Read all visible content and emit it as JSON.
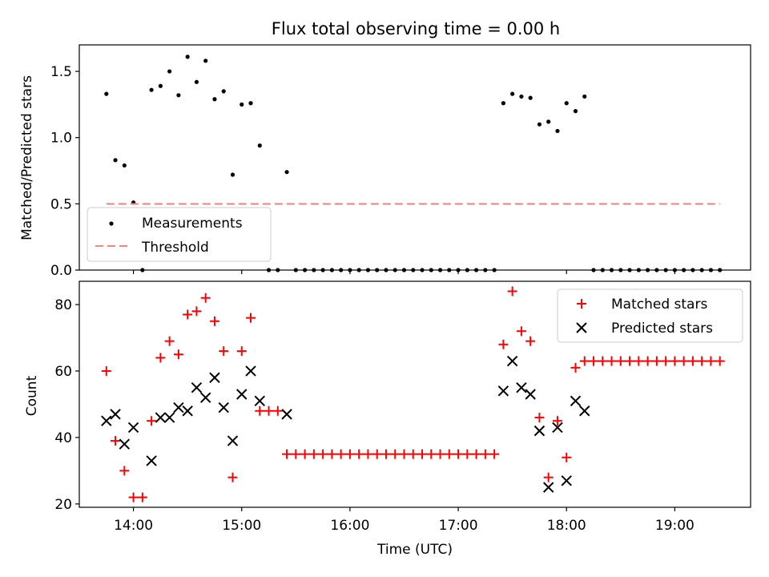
{
  "figure": {
    "title": "Flux total observing time = 0.00 h",
    "xlabel": "Time (UTC)",
    "x_ticks": [
      "14:00",
      "15:00",
      "16:00",
      "17:00",
      "18:00",
      "19:00"
    ]
  },
  "chart_data": [
    {
      "type": "scatter",
      "ylabel": "Matched/Predicted stars",
      "xlim": [
        "13:30",
        "19:42"
      ],
      "ylim": [
        0,
        1.7
      ],
      "y_ticks": [
        "0.0",
        "0.5",
        "1.0",
        "1.5"
      ],
      "legend": {
        "position": "lower-left",
        "entries": [
          "Measurements",
          "Threshold"
        ]
      },
      "series": [
        {
          "name": "Measurements",
          "marker": "dot",
          "color": "#000000",
          "points": [
            [
              "13:45",
              1.33
            ],
            [
              "13:50",
              0.83
            ],
            [
              "13:55",
              0.79
            ],
            [
              "14:00",
              0.51
            ],
            [
              "14:05",
              0.0
            ],
            [
              "14:10",
              1.36
            ],
            [
              "14:15",
              1.39
            ],
            [
              "14:20",
              1.5
            ],
            [
              "14:25",
              1.32
            ],
            [
              "14:30",
              1.61
            ],
            [
              "14:35",
              1.42
            ],
            [
              "14:40",
              1.58
            ],
            [
              "14:45",
              1.29
            ],
            [
              "14:50",
              1.35
            ],
            [
              "14:55",
              0.72
            ],
            [
              "15:00",
              1.25
            ],
            [
              "15:05",
              1.26
            ],
            [
              "15:10",
              0.94
            ],
            [
              "15:15",
              0.0
            ],
            [
              "15:20",
              0.0
            ],
            [
              "15:25",
              0.74
            ],
            [
              "15:30",
              0.0
            ],
            [
              "15:35",
              0.0
            ],
            [
              "15:40",
              0.0
            ],
            [
              "15:45",
              0.0
            ],
            [
              "15:50",
              0.0
            ],
            [
              "15:55",
              0.0
            ],
            [
              "16:00",
              0.0
            ],
            [
              "16:05",
              0.0
            ],
            [
              "16:10",
              0.0
            ],
            [
              "16:15",
              0.0
            ],
            [
              "16:20",
              0.0
            ],
            [
              "16:25",
              0.0
            ],
            [
              "16:30",
              0.0
            ],
            [
              "16:35",
              0.0
            ],
            [
              "16:40",
              0.0
            ],
            [
              "16:45",
              0.0
            ],
            [
              "16:50",
              0.0
            ],
            [
              "16:55",
              0.0
            ],
            [
              "17:00",
              0.0
            ],
            [
              "17:05",
              0.0
            ],
            [
              "17:10",
              0.0
            ],
            [
              "17:15",
              0.0
            ],
            [
              "17:20",
              0.0
            ],
            [
              "17:25",
              1.26
            ],
            [
              "17:30",
              1.33
            ],
            [
              "17:35",
              1.31
            ],
            [
              "17:40",
              1.3
            ],
            [
              "17:45",
              1.1
            ],
            [
              "17:50",
              1.12
            ],
            [
              "17:55",
              1.05
            ],
            [
              "18:00",
              1.26
            ],
            [
              "18:05",
              1.2
            ],
            [
              "18:10",
              1.31
            ],
            [
              "18:15",
              0.0
            ],
            [
              "18:20",
              0.0
            ],
            [
              "18:25",
              0.0
            ],
            [
              "18:30",
              0.0
            ],
            [
              "18:35",
              0.0
            ],
            [
              "18:40",
              0.0
            ],
            [
              "18:45",
              0.0
            ],
            [
              "18:50",
              0.0
            ],
            [
              "18:55",
              0.0
            ],
            [
              "19:00",
              0.0
            ],
            [
              "19:05",
              0.0
            ],
            [
              "19:10",
              0.0
            ],
            [
              "19:15",
              0.0
            ],
            [
              "19:20",
              0.0
            ],
            [
              "19:25",
              0.0
            ]
          ]
        },
        {
          "name": "Threshold",
          "marker": "dashed-line",
          "color": "#ff7f7f",
          "points": [
            [
              "13:45",
              0.5
            ],
            [
              "19:25",
              0.5
            ]
          ]
        }
      ]
    },
    {
      "type": "scatter",
      "ylabel": "Count",
      "xlim": [
        "13:30",
        "19:42"
      ],
      "ylim": [
        19,
        87
      ],
      "y_ticks": [
        "20",
        "40",
        "60",
        "80"
      ],
      "legend": {
        "position": "top-right",
        "entries": [
          "Matched stars",
          "Predicted stars"
        ]
      },
      "series": [
        {
          "name": "Matched stars",
          "marker": "plus",
          "color": "#ff0000",
          "points": [
            [
              "13:45",
              60
            ],
            [
              "13:50",
              39
            ],
            [
              "13:55",
              30
            ],
            [
              "14:00",
              22
            ],
            [
              "14:05",
              22
            ],
            [
              "14:10",
              45
            ],
            [
              "14:15",
              64
            ],
            [
              "14:20",
              69
            ],
            [
              "14:25",
              65
            ],
            [
              "14:30",
              77
            ],
            [
              "14:35",
              78
            ],
            [
              "14:40",
              82
            ],
            [
              "14:45",
              75
            ],
            [
              "14:50",
              66
            ],
            [
              "14:55",
              28
            ],
            [
              "15:00",
              66
            ],
            [
              "15:05",
              76
            ],
            [
              "15:10",
              48
            ],
            [
              "15:15",
              48
            ],
            [
              "15:20",
              48
            ],
            [
              "15:25",
              35
            ],
            [
              "15:30",
              35
            ],
            [
              "15:35",
              35
            ],
            [
              "15:40",
              35
            ],
            [
              "15:45",
              35
            ],
            [
              "15:50",
              35
            ],
            [
              "15:55",
              35
            ],
            [
              "16:00",
              35
            ],
            [
              "16:05",
              35
            ],
            [
              "16:10",
              35
            ],
            [
              "16:15",
              35
            ],
            [
              "16:20",
              35
            ],
            [
              "16:25",
              35
            ],
            [
              "16:30",
              35
            ],
            [
              "16:35",
              35
            ],
            [
              "16:40",
              35
            ],
            [
              "16:45",
              35
            ],
            [
              "16:50",
              35
            ],
            [
              "16:55",
              35
            ],
            [
              "17:00",
              35
            ],
            [
              "17:05",
              35
            ],
            [
              "17:10",
              35
            ],
            [
              "17:15",
              35
            ],
            [
              "17:20",
              35
            ],
            [
              "17:25",
              68
            ],
            [
              "17:30",
              84
            ],
            [
              "17:35",
              72
            ],
            [
              "17:40",
              69
            ],
            [
              "17:45",
              46
            ],
            [
              "17:50",
              28
            ],
            [
              "17:55",
              45
            ],
            [
              "18:00",
              34
            ],
            [
              "18:05",
              61
            ],
            [
              "18:10",
              63
            ],
            [
              "18:15",
              63
            ],
            [
              "18:20",
              63
            ],
            [
              "18:25",
              63
            ],
            [
              "18:30",
              63
            ],
            [
              "18:35",
              63
            ],
            [
              "18:40",
              63
            ],
            [
              "18:45",
              63
            ],
            [
              "18:50",
              63
            ],
            [
              "18:55",
              63
            ],
            [
              "19:00",
              63
            ],
            [
              "19:05",
              63
            ],
            [
              "19:10",
              63
            ],
            [
              "19:15",
              63
            ],
            [
              "19:20",
              63
            ],
            [
              "19:25",
              63
            ]
          ]
        },
        {
          "name": "Predicted stars",
          "marker": "x",
          "color": "#000000",
          "points": [
            [
              "13:45",
              45
            ],
            [
              "13:50",
              47
            ],
            [
              "13:55",
              38
            ],
            [
              "14:00",
              43
            ],
            [
              "14:10",
              33
            ],
            [
              "14:15",
              46
            ],
            [
              "14:20",
              46
            ],
            [
              "14:25",
              49
            ],
            [
              "14:30",
              48
            ],
            [
              "14:35",
              55
            ],
            [
              "14:40",
              52
            ],
            [
              "14:45",
              58
            ],
            [
              "14:50",
              49
            ],
            [
              "14:55",
              39
            ],
            [
              "15:00",
              53
            ],
            [
              "15:05",
              60
            ],
            [
              "15:10",
              51
            ],
            [
              "15:25",
              47
            ],
            [
              "17:25",
              54
            ],
            [
              "17:30",
              63
            ],
            [
              "17:35",
              55
            ],
            [
              "17:40",
              53
            ],
            [
              "17:45",
              42
            ],
            [
              "17:50",
              25
            ],
            [
              "17:55",
              43
            ],
            [
              "18:00",
              27
            ],
            [
              "18:05",
              51
            ],
            [
              "18:10",
              48
            ]
          ]
        }
      ]
    }
  ]
}
